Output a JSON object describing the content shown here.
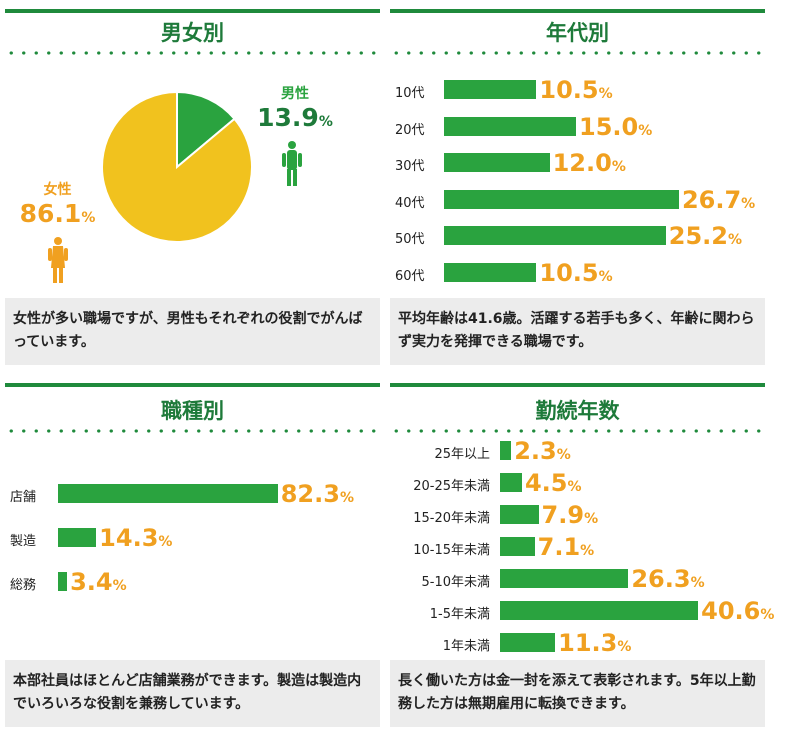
{
  "colors": {
    "green": "#2aa33f",
    "dark_green": "#1e7a3a",
    "orange": "#f0a020",
    "yellow": "#f1c21e",
    "note_bg": "#ececec"
  },
  "chart_data": [
    {
      "type": "pie",
      "title": "男女別",
      "slices": [
        {
          "name": "男性",
          "value": 13.9,
          "color": "#2aa33f"
        },
        {
          "name": "女性",
          "value": 86.1,
          "color": "#f1c21e"
        }
      ],
      "unit": "%",
      "note": "女性が多い職場ですが、男性もそれぞれの役割でがんばっています。"
    },
    {
      "type": "bar",
      "orientation": "horizontal",
      "title": "年代別",
      "categories": [
        "10代",
        "20代",
        "30代",
        "40代",
        "50代",
        "60代"
      ],
      "values": [
        10.5,
        15.0,
        12.0,
        26.7,
        25.2,
        10.5
      ],
      "labels": [
        "10.5",
        "15.0",
        "12.0",
        "26.7",
        "25.2",
        "10.5"
      ],
      "unit": "%",
      "note": "平均年齢は41.6歳。活躍する若手も多く、年齢に関わらず実力を発揮できる職場です。"
    },
    {
      "type": "bar",
      "orientation": "horizontal",
      "title": "職種別",
      "categories": [
        "店舗",
        "製造",
        "総務"
      ],
      "values": [
        82.3,
        14.3,
        3.4
      ],
      "labels": [
        "82.3",
        "14.3",
        "3.4"
      ],
      "unit": "%",
      "note": "本部社員はほとんど店舗業務ができます。製造は製造内でいろいろな役割を兼務しています。"
    },
    {
      "type": "bar",
      "orientation": "horizontal",
      "title": "勤続年数",
      "categories": [
        "25年以上",
        "20-25年未満",
        "15-20年未満",
        "10-15年未満",
        "5-10年未満",
        "1-5年未満",
        "1年未満"
      ],
      "values": [
        2.3,
        4.5,
        7.9,
        7.1,
        26.3,
        40.6,
        11.3
      ],
      "labels": [
        "2.3",
        "4.5",
        "7.9",
        "7.1",
        "26.3",
        "40.6",
        "11.3"
      ],
      "unit": "%",
      "note": "長く働いた方は金一封を添えて表彰されます。5年以上勤務した方は無期雇用に転換できます。"
    }
  ]
}
